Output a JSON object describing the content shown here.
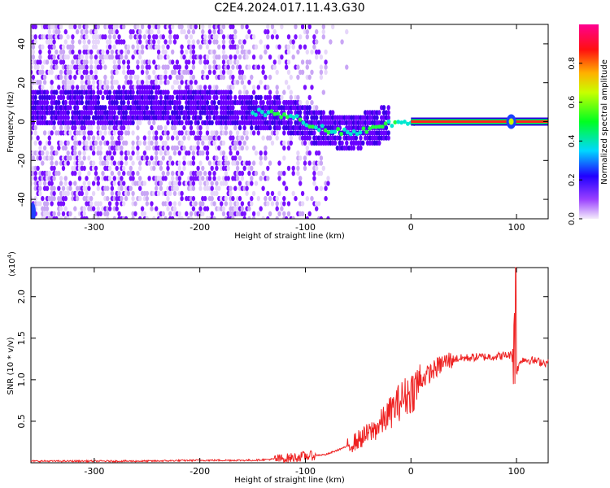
{
  "title": "C2E4.2024.017.11.43.G30",
  "chart_data": [
    {
      "type": "heatmap",
      "xlabel": "Height of straight line (km)",
      "ylabel": "Frequency (Hz)",
      "xlim": [
        -360,
        130
      ],
      "ylim": [
        -50,
        50
      ],
      "x_ticks": [
        -300,
        -200,
        -100,
        0,
        100
      ],
      "y_ticks": [
        -40,
        -20,
        0,
        20,
        40
      ],
      "colorbar": {
        "label": "Normalized spectral amplitude",
        "range": [
          0.0,
          1.0
        ],
        "ticks": [
          0.0,
          0.2,
          0.4,
          0.6,
          0.8
        ],
        "colormap": [
          "#e8d8f8",
          "#8000ff",
          "#0000ff",
          "#00e0ff",
          "#00ff00",
          "#ffff00",
          "#ff0000",
          "#ff0080"
        ]
      },
      "ridge": [
        {
          "x": -270,
          "f": 8
        },
        {
          "x": -250,
          "f": 9
        },
        {
          "x": -220,
          "f": 8
        },
        {
          "x": -200,
          "f": 7
        },
        {
          "x": -170,
          "f": 6
        },
        {
          "x": -150,
          "f": 5
        },
        {
          "x": -130,
          "f": 4
        },
        {
          "x": -110,
          "f": 2
        },
        {
          "x": -95,
          "f": -2
        },
        {
          "x": -80,
          "f": -4
        },
        {
          "x": -65,
          "f": -5
        },
        {
          "x": -50,
          "f": -5
        },
        {
          "x": -40,
          "f": -4
        },
        {
          "x": -30,
          "f": -2
        },
        {
          "x": -20,
          "f": -1
        },
        {
          "x": -10,
          "f": 0
        },
        {
          "x": 0,
          "f": 0
        },
        {
          "x": 130,
          "f": 0
        }
      ]
    },
    {
      "type": "line",
      "xlabel": "Height of straight line (km)",
      "ylabel": "SNR (10 * v/v)",
      "y_multiplier": "(x10",
      "y_multiplier_exp": "4",
      "y_multiplier_close": ")",
      "xlim": [
        -360,
        130
      ],
      "ylim": [
        0,
        2.35
      ],
      "x_ticks": [
        -300,
        -200,
        -100,
        0,
        100
      ],
      "y_ticks": [
        0.5,
        1.0,
        1.5,
        2.0
      ],
      "series": [
        {
          "color": "#ee2222",
          "x": [
            -360,
            -300,
            -250,
            -200,
            -150,
            -120,
            -100,
            -80,
            -60,
            -40,
            -30,
            -20,
            -10,
            0,
            10,
            20,
            30,
            40,
            60,
            80,
            95,
            100,
            105,
            130
          ],
          "values": [
            0.02,
            0.02,
            0.02,
            0.03,
            0.03,
            0.05,
            0.08,
            0.1,
            0.2,
            0.35,
            0.45,
            0.6,
            0.75,
            0.85,
            1.0,
            1.1,
            1.2,
            1.25,
            1.27,
            1.28,
            1.3,
            1.1,
            1.25,
            1.2
          ]
        }
      ]
    }
  ]
}
